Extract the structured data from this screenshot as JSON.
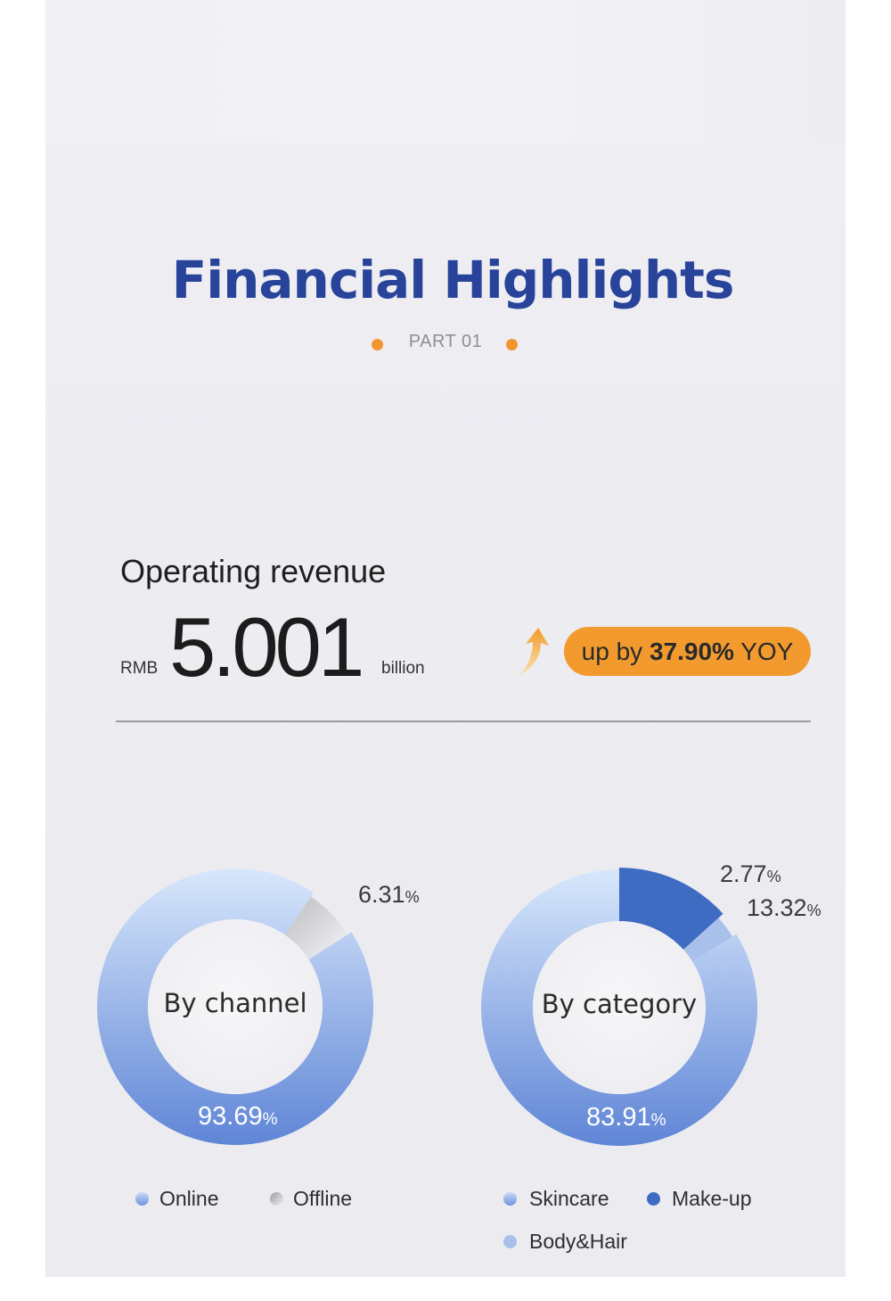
{
  "header": {
    "title": "Financial Highlights",
    "part": "PART 01"
  },
  "revenue": {
    "label": "Operating revenue",
    "currency": "RMB",
    "value": "5.001",
    "unit": "billion",
    "growth_prefix": "up by ",
    "growth_value": "37.90%",
    "growth_suffix": " YOY"
  },
  "colors": {
    "title": "#27439a",
    "accent_orange": "#f29a2e",
    "online": "#7f9ee0",
    "offline": "#cfcfd3",
    "skincare": "#7f9ee0",
    "makeup": "#3f6cc3",
    "body_hair": "#a8c0ea"
  },
  "chart_data": [
    {
      "type": "pie",
      "title": "By channel",
      "categories": [
        "Online",
        "Offline"
      ],
      "values": [
        93.69,
        6.31
      ],
      "labels": {
        "main": "93.69",
        "small": "6.31",
        "unit": "%"
      },
      "legend": "bottom"
    },
    {
      "type": "pie",
      "title": "By category",
      "categories": [
        "Skincare",
        "Make-up",
        "Body&Hair"
      ],
      "values": [
        83.91,
        13.32,
        2.77
      ],
      "labels": {
        "main": "83.91",
        "a": "13.32",
        "b": "2.77",
        "unit": "%"
      },
      "legend": "bottom"
    }
  ]
}
